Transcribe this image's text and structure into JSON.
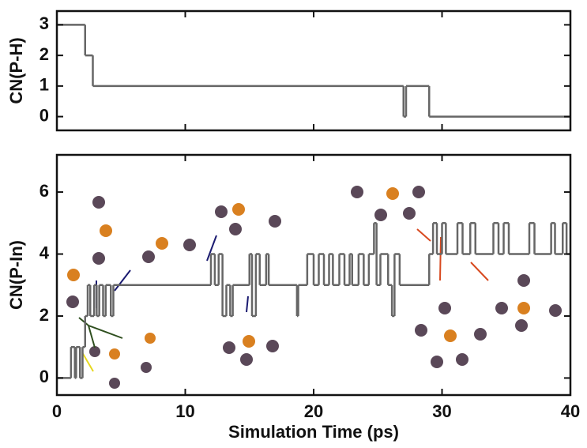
{
  "chart_data": [
    {
      "type": "step",
      "ylabel": "CN(P-H)",
      "color": "#666666",
      "x": [
        0,
        2.2,
        2.8,
        27.0,
        27.2,
        29.0,
        40
      ],
      "values": [
        3,
        2,
        1,
        0,
        1,
        0,
        0
      ],
      "xlim": [
        0,
        40
      ],
      "xticks": [
        0,
        10,
        20,
        30,
        40
      ],
      "xtick_labels": false,
      "ylim": [
        -0.45,
        3.45
      ],
      "yticks": [
        0,
        1,
        2,
        3
      ]
    },
    {
      "type": "step",
      "ylabel": "CN(P-In)",
      "xlabel": "Simulation Time (ps)",
      "color": "#666666",
      "x": [
        0,
        1.1,
        1.4,
        1.5,
        1.8,
        2.0,
        2.2,
        2.4,
        2.6,
        2.9,
        3.1,
        3.3,
        3.6,
        3.8,
        4.2,
        4.4,
        12.0,
        12.3,
        12.6,
        12.9,
        13.2,
        13.5,
        13.7,
        15.0,
        15.2,
        15.5,
        15.8,
        16.3,
        16.5,
        18.7,
        18.8,
        19.5,
        20.0,
        20.4,
        20.8,
        21.2,
        21.5,
        22.0,
        22.4,
        22.8,
        23.0,
        23.5,
        23.9,
        24.3,
        24.7,
        24.9,
        25.2,
        25.8,
        26.1,
        26.3,
        26.7,
        29.0,
        29.3,
        29.6,
        30.0,
        30.3,
        31.2,
        31.6,
        32.2,
        32.6,
        34.0,
        34.4,
        34.8,
        35.2,
        36.8,
        37.2,
        38.5,
        38.8,
        39.4,
        39.7,
        40
      ],
      "values": [
        0,
        1,
        0,
        1,
        0,
        1,
        2,
        3,
        2,
        3,
        2,
        3,
        2,
        3,
        2,
        3,
        4,
        3,
        4,
        2,
        3,
        2,
        3,
        4,
        2,
        4,
        3,
        4,
        3,
        2,
        3,
        4,
        3,
        4,
        3,
        4,
        3,
        4,
        3,
        4,
        3,
        4,
        3,
        4,
        5,
        3,
        4,
        3,
        2,
        4,
        3,
        4,
        5,
        4,
        5,
        4,
        5,
        4,
        5,
        4,
        5,
        4,
        5,
        4,
        5,
        4,
        5,
        4,
        5,
        4,
        4
      ],
      "xlim": [
        0,
        40
      ],
      "xticks": [
        0,
        10,
        20,
        30,
        40
      ],
      "xtick_labels": true,
      "ylim": [
        -0.55,
        7.2
      ],
      "yticks": [
        0,
        2,
        4,
        6
      ]
    }
  ]
}
